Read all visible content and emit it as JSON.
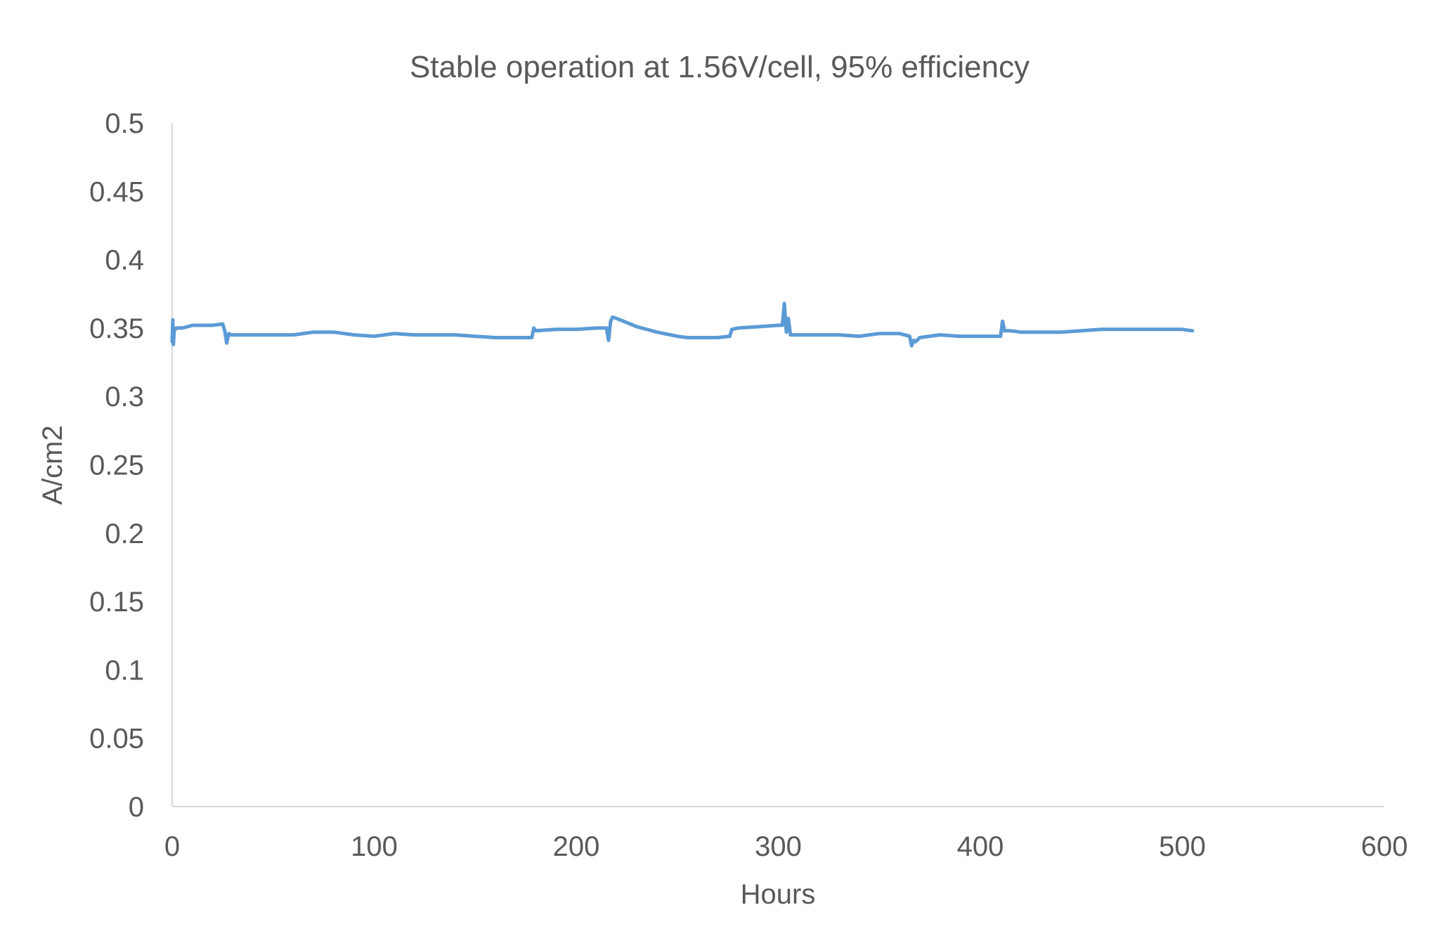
{
  "chart_data": {
    "type": "line",
    "title": "Stable operation at 1.56V/cell, 95% efficiency",
    "xlabel": "Hours",
    "ylabel": "A/cm2",
    "xlim": [
      0,
      600
    ],
    "ylim": [
      0,
      0.5
    ],
    "x_ticks": [
      "0",
      "100",
      "200",
      "300",
      "400",
      "500",
      "600"
    ],
    "y_ticks": [
      "0",
      "0.05",
      "0.1",
      "0.15",
      "0.2",
      "0.25",
      "0.3",
      "0.35",
      "0.4",
      "0.45",
      "0.5"
    ],
    "grid": false,
    "legend": "none",
    "series": [
      {
        "color": "#5b9bd5",
        "x": [
          0,
          0.3,
          0.6,
          1,
          2,
          5,
          10,
          15,
          20,
          25,
          26,
          27,
          28,
          29,
          30,
          40,
          50,
          60,
          70,
          80,
          90,
          100,
          110,
          120,
          130,
          140,
          150,
          160,
          170,
          178,
          179,
          180,
          190,
          200,
          210,
          215,
          216,
          217,
          218,
          220,
          225,
          230,
          240,
          250,
          255,
          260,
          270,
          276,
          277,
          280,
          290,
          300,
          302,
          303,
          304,
          305,
          306,
          310,
          320,
          330,
          340,
          350,
          360,
          365,
          366,
          367,
          368,
          370,
          380,
          390,
          400,
          410,
          411,
          412,
          415,
          420,
          430,
          440,
          450,
          460,
          470,
          480,
          490,
          500,
          505
        ],
        "y": [
          0.34,
          0.356,
          0.338,
          0.348,
          0.35,
          0.35,
          0.352,
          0.352,
          0.352,
          0.353,
          0.348,
          0.339,
          0.346,
          0.345,
          0.345,
          0.345,
          0.345,
          0.345,
          0.347,
          0.347,
          0.345,
          0.344,
          0.346,
          0.345,
          0.345,
          0.345,
          0.344,
          0.343,
          0.343,
          0.343,
          0.35,
          0.348,
          0.349,
          0.349,
          0.35,
          0.35,
          0.341,
          0.355,
          0.358,
          0.357,
          0.354,
          0.351,
          0.347,
          0.344,
          0.343,
          0.343,
          0.343,
          0.344,
          0.349,
          0.35,
          0.351,
          0.352,
          0.352,
          0.368,
          0.347,
          0.357,
          0.345,
          0.345,
          0.345,
          0.345,
          0.344,
          0.346,
          0.346,
          0.344,
          0.337,
          0.341,
          0.34,
          0.343,
          0.345,
          0.344,
          0.344,
          0.344,
          0.355,
          0.348,
          0.348,
          0.347,
          0.347,
          0.347,
          0.348,
          0.349,
          0.349,
          0.349,
          0.349,
          0.349,
          0.348
        ]
      }
    ]
  }
}
